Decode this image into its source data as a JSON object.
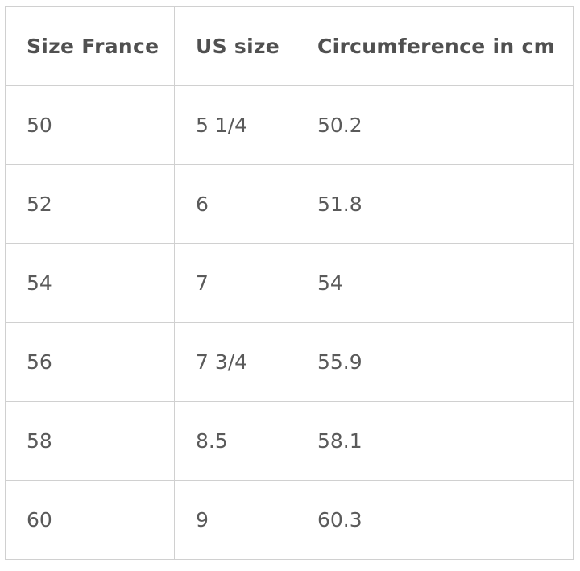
{
  "table": {
    "header": [
      "Size France",
      "US size",
      "Circumference in cm"
    ],
    "rows": [
      [
        "50",
        "5 1/4",
        "50.2"
      ],
      [
        "52",
        "6",
        "51.8"
      ],
      [
        "54",
        "7",
        "54"
      ],
      [
        "56",
        "7 3/4",
        "55.9"
      ],
      [
        "58",
        "8.5",
        "58.1"
      ],
      [
        "60",
        "9",
        "60.3"
      ]
    ]
  }
}
